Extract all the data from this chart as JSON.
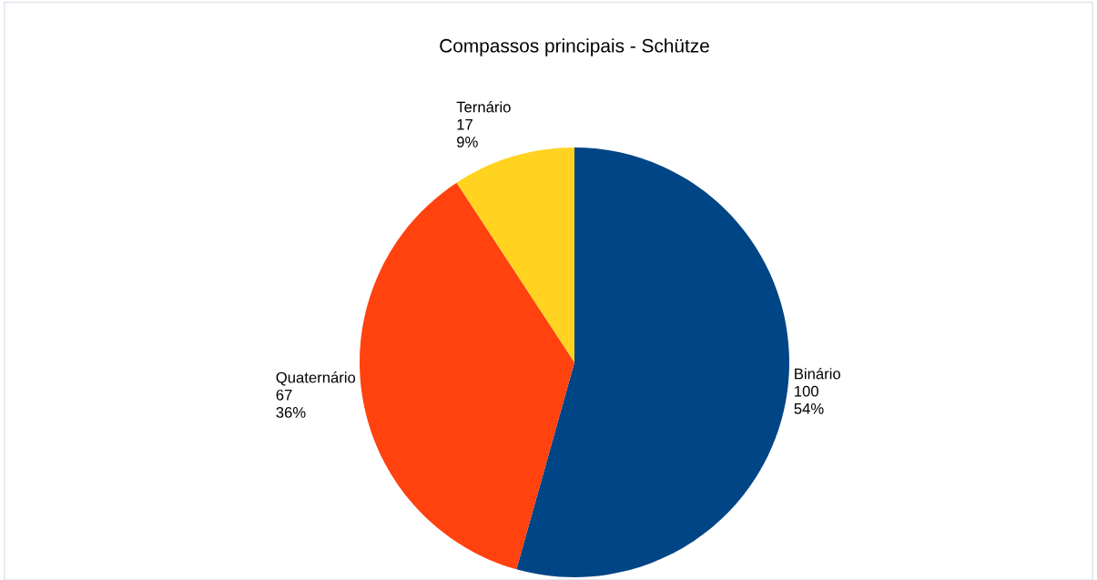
{
  "chart_data": {
    "type": "pie",
    "title": "Compassos principais - Schütze",
    "categories": [
      "Binário",
      "Quaternário",
      "Ternário"
    ],
    "values": [
      100,
      67,
      17
    ],
    "colors": [
      "#004586",
      "#ff420e",
      "#ffd320"
    ],
    "value_labels": [
      "100\n54%",
      "67\n36%",
      "17\n9%"
    ]
  }
}
